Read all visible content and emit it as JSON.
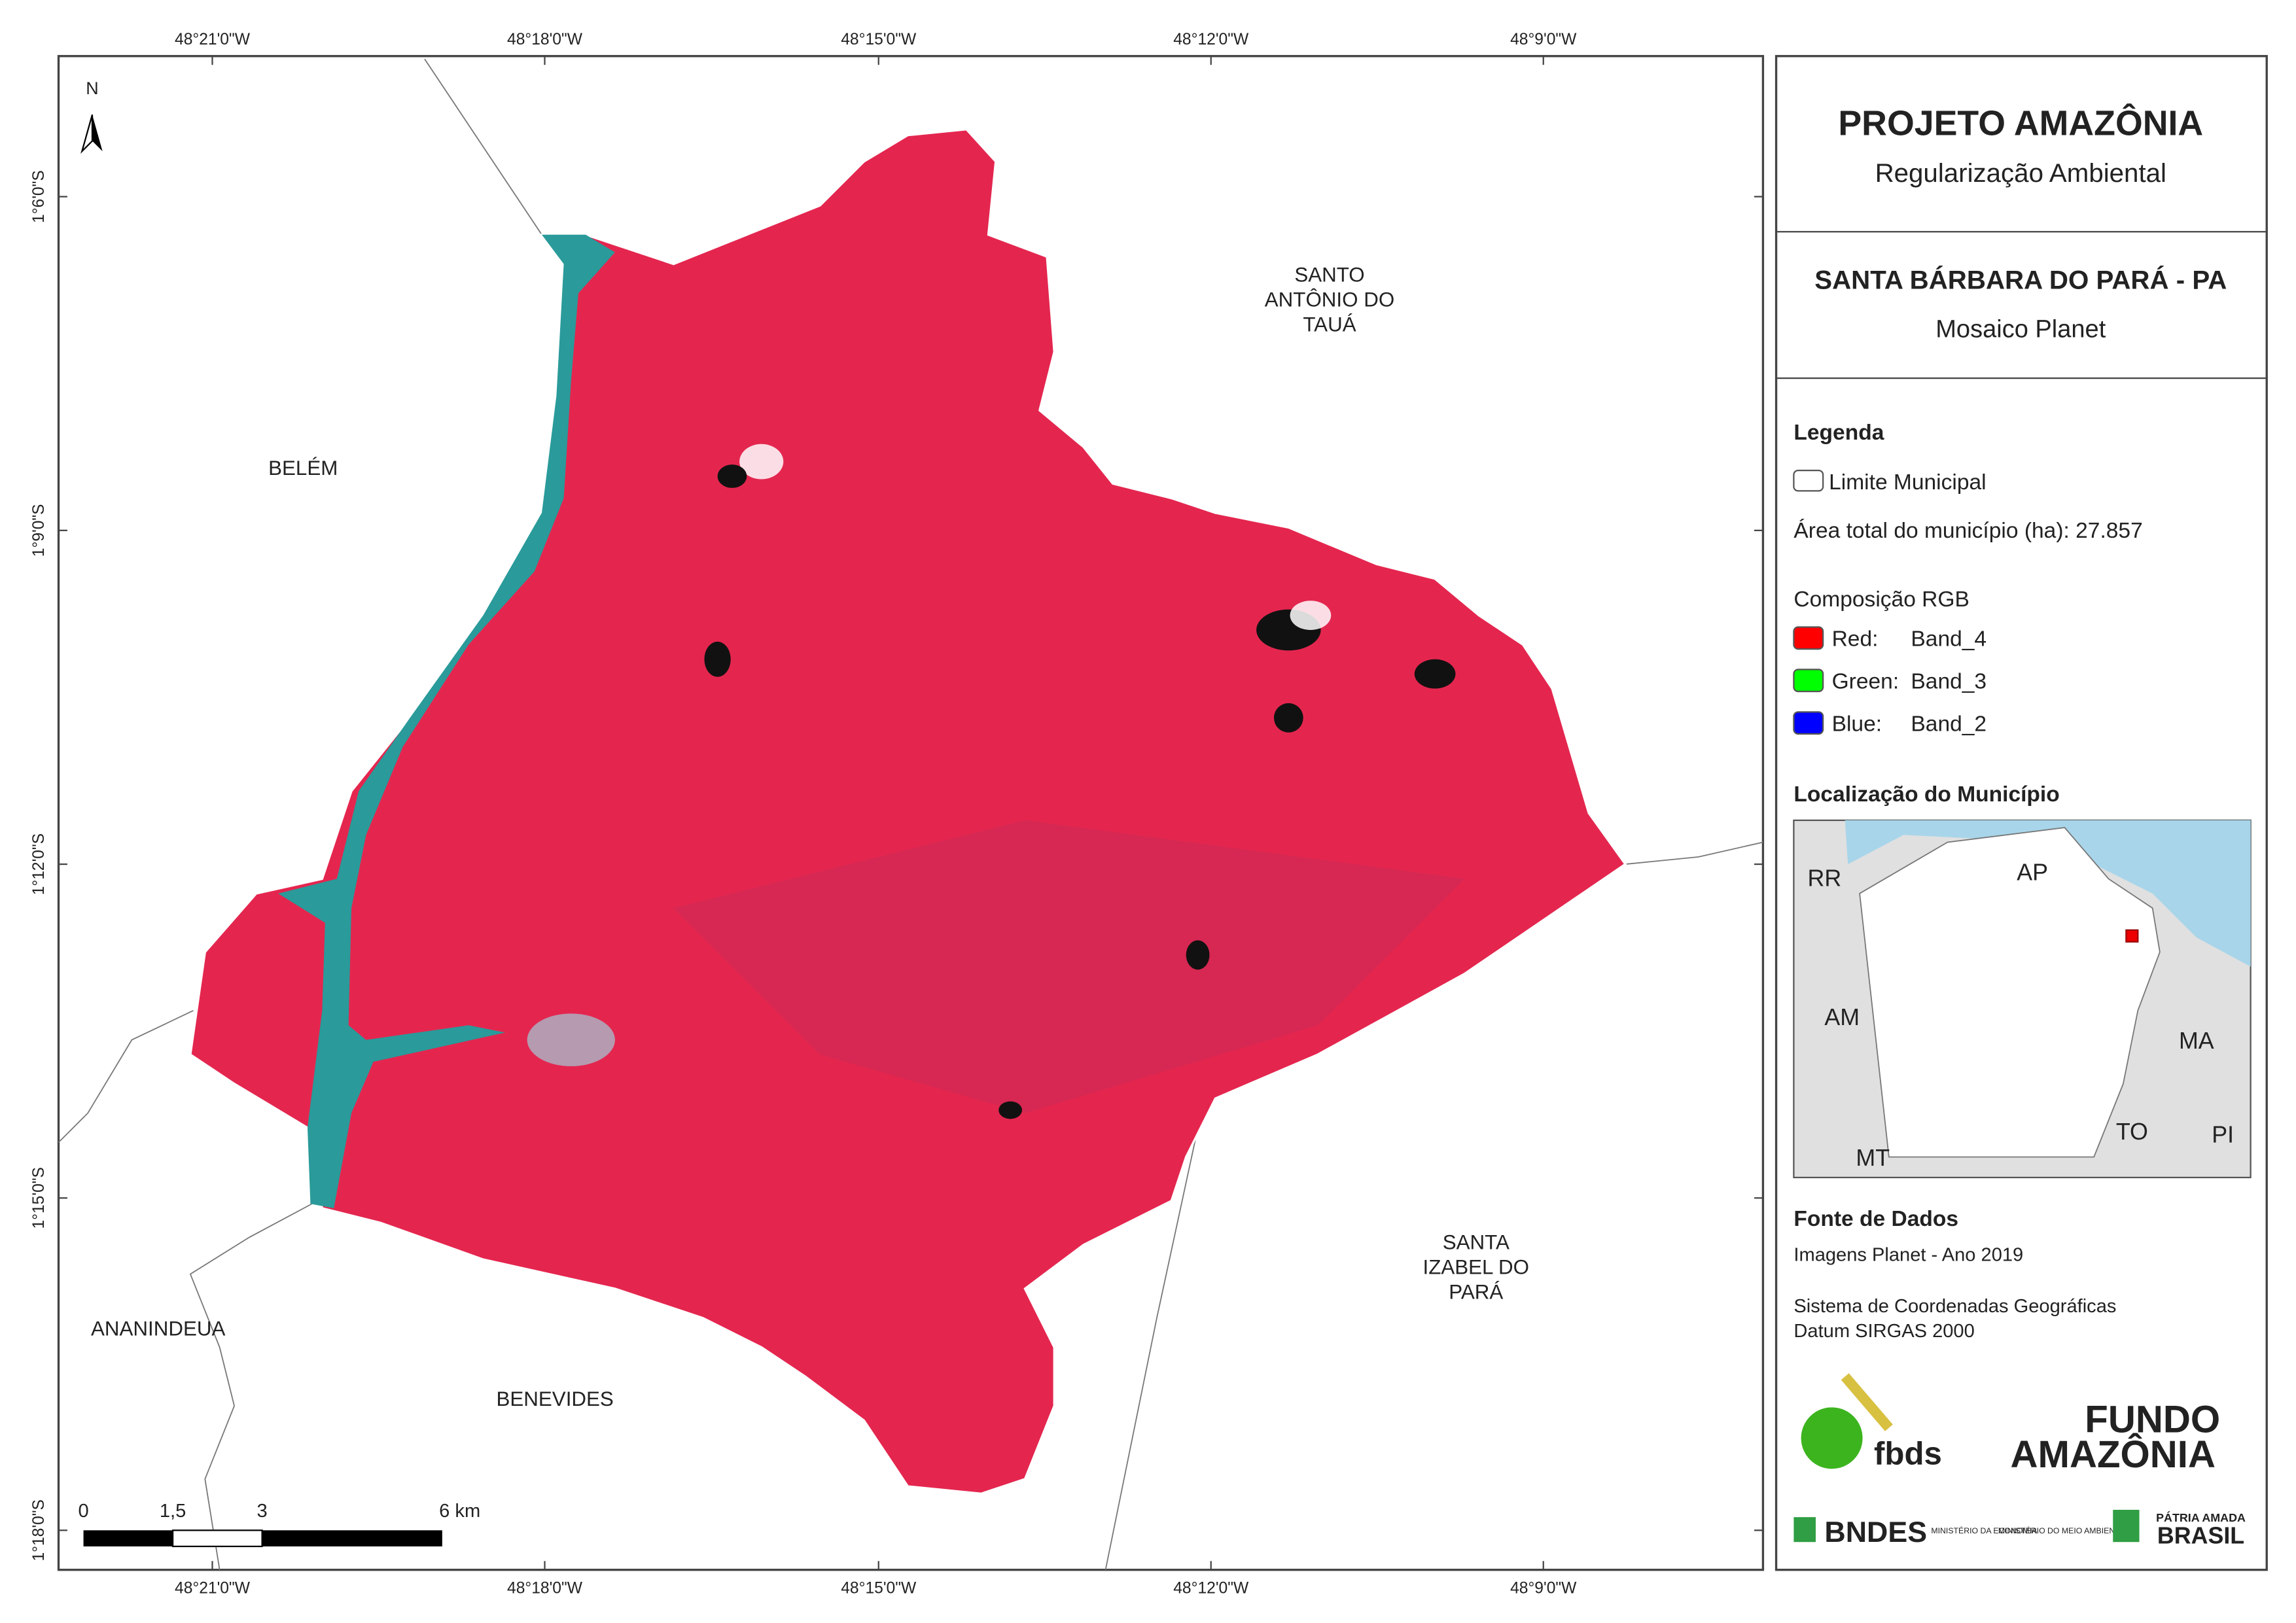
{
  "header": {
    "title": "PROJETO AMAZÔNIA",
    "subtitle": "Regularização Ambiental"
  },
  "map_title": {
    "title": "SANTA BÁRBARA DO PARÁ - PA",
    "subtitle": "Mosaico Planet"
  },
  "legend": {
    "title": "Legenda",
    "boundary": "Limite Municipal",
    "area": "Área total do município (ha): 27.857",
    "composition_title": "Composição RGB",
    "bands": [
      {
        "label": "Red:",
        "band": "Band_4",
        "color": "#ff0000"
      },
      {
        "label": "Green:",
        "band": "Band_3",
        "color": "#00ff00"
      },
      {
        "label": "Blue:",
        "band": "Band_2",
        "color": "#0000ff"
      }
    ]
  },
  "location": {
    "title": "Localização do Município",
    "labels": [
      "RR",
      "AP",
      "AM",
      "MA",
      "TO",
      "MT",
      "PI"
    ]
  },
  "sources": {
    "title": "Fonte de Dados",
    "lines": [
      "Imagens Planet - Ano 2019",
      "Sistema de Coordenadas Geográficas",
      "Datum SIRGAS 2000"
    ]
  },
  "logos": {
    "fbds": "fbds",
    "fundo": "FUNDO",
    "amazonia": "AMAZÔNIA",
    "bndes": "BNDES",
    "ministry1": "MINISTÉRIO DA ECONOMIA",
    "ministry2": "MINISTÉRIO DO MEIO AMBIENTE",
    "patria": "PÁTRIA AMADA",
    "brasil": "BRASIL"
  },
  "map": {
    "north": "N",
    "longitudes": [
      "48°21'0\"W",
      "48°18'0\"W",
      "48°15'0\"W",
      "48°12'0\"W",
      "48°9'0\"W"
    ],
    "latitudes": [
      "1°6'0\"S",
      "1°9'0\"S",
      "1°12'0\"S",
      "1°15'0\"S",
      "1°18'0\"S"
    ],
    "places": [
      {
        "lines": [
          "SANTO",
          "ANTÔNIO DO",
          "TAUÁ"
        ]
      },
      {
        "lines": [
          "BELÉM"
        ]
      },
      {
        "lines": [
          "SANTA",
          "IZABEL DO",
          "PARÁ"
        ]
      },
      {
        "lines": [
          "ANANINDEUA"
        ]
      },
      {
        "lines": [
          "BENEVIDES"
        ]
      }
    ],
    "scale_labels": [
      "0",
      "1,5",
      "3",
      "6 km"
    ]
  }
}
